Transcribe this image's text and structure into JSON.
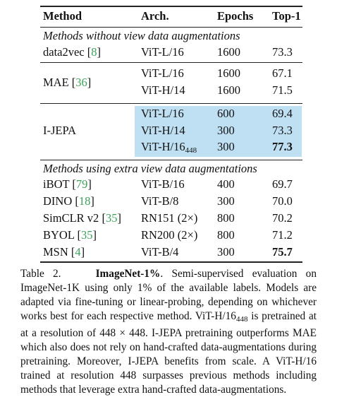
{
  "header": {
    "method": "Method",
    "arch": "Arch.",
    "epochs": "Epochs",
    "top1": "Top-1"
  },
  "sections": [
    {
      "title": "Methods without view data augmentations"
    },
    {
      "title": "Methods using extra view data augmentations"
    }
  ],
  "rows": [
    {
      "method": "data2vec",
      "cite": "8",
      "arch": "ViT-L/16",
      "epochs": "1600",
      "top1": "73.3"
    },
    {
      "method": "MAE",
      "cite": "36",
      "arch": "ViT-L/16",
      "epochs": "1600",
      "top1": "67.1"
    },
    {
      "method": "",
      "cite": "",
      "arch": "ViT-H/14",
      "epochs": "1600",
      "top1": "71.5"
    },
    {
      "method": "I-JEPA",
      "cite": "",
      "arch": "ViT-L/16",
      "epochs": "600",
      "top1": "69.4"
    },
    {
      "method": "",
      "cite": "",
      "arch": "ViT-H/14",
      "epochs": "300",
      "top1": "73.3"
    },
    {
      "method": "",
      "cite": "",
      "arch": "ViT-H/16",
      "arch_sub": "448",
      "epochs": "300",
      "top1": "77.3"
    },
    {
      "method": "iBOT",
      "cite": "79",
      "arch": "ViT-B/16",
      "epochs": "400",
      "top1": "69.7"
    },
    {
      "method": "DINO",
      "cite": "18",
      "arch": "ViT-B/8",
      "epochs": "300",
      "top1": "70.0"
    },
    {
      "method": "SimCLR v2",
      "cite": "35",
      "arch": "RN151 (2×)",
      "epochs": "800",
      "top1": "70.2"
    },
    {
      "method": "BYOL",
      "cite": "35",
      "arch": "RN200 (2×)",
      "epochs": "800",
      "top1": "71.2"
    },
    {
      "method": "MSN",
      "cite": "4",
      "arch": "ViT-B/4",
      "epochs": "300",
      "top1": "75.7"
    }
  ],
  "caption": {
    "label": "Table 2.",
    "title": "ImageNet-1%",
    "text_1": ". Semi-supervised evaluation on ImageNet-1K using only 1% of the available labels. Models are adapted via fine-tuning or linear-probing, depending on whichever works best for each respective method. ViT-H/16",
    "sub_1": "448",
    "text_2": " is pretrained at at a resolution of 448 × 448. I-JEPA pretraining outperforms MAE which also does not rely on hand-crafted data-augmentations during pretraining. Moreover, I-JEPA benefits from scale. A ViT-H/16 trained at resolution 448 surpasses previous methods including methods that leverage extra hand-crafted data-augmentations."
  },
  "colors": {
    "highlight": "#bfe0f3",
    "citation": "#3aa35a"
  }
}
